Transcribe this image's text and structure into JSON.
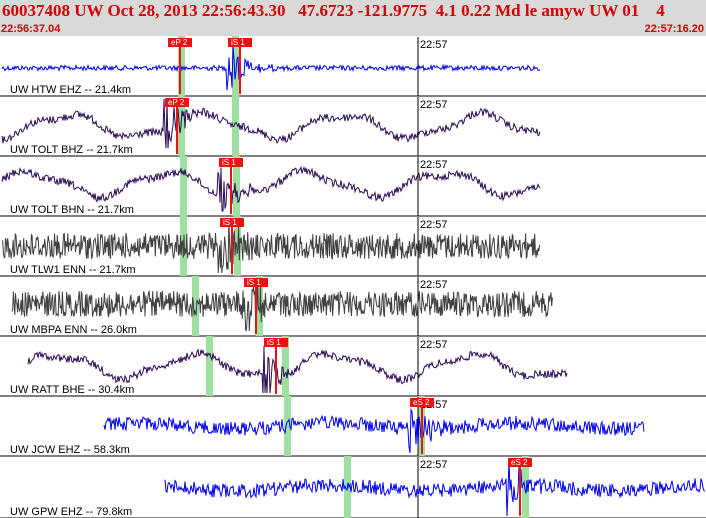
{
  "header": {
    "title": "60037408 UW Oct 28, 2013 22:56:43.30   47.6723 -121.9775  4.1 0.22 Md le amyw UW 01    4",
    "time_start": "22:56:37.04",
    "time_end": "22:57:16.20"
  },
  "minute_label": "22:57",
  "colors": {
    "background": "#ffffff",
    "header": "#d9d9d9",
    "title": "#d40000",
    "pick": "#ee1111",
    "theoretical_window": "#9fdf9f",
    "blue_trace": "#0000ee",
    "purple_trace": "#2a0a55",
    "gray_trace": "#404040"
  },
  "traces": [
    {
      "label": "UW HTW EHZ -- 21.4km",
      "color": "blue",
      "waveform": "small-noise-burst",
      "picks": [
        "eP 2",
        "iS 1"
      ]
    },
    {
      "label": "UW TOLT BHZ -- 21.7km",
      "color": "purple",
      "waveform": "microseism",
      "picks": [
        "eP 2"
      ]
    },
    {
      "label": "UW TOLT BHN -- 21.7km",
      "color": "purple",
      "waveform": "microseism",
      "picks": [
        "iS 1"
      ]
    },
    {
      "label": "UW TLW1 ENN -- 21.7km",
      "color": "gray",
      "waveform": "dense-noise",
      "picks": [
        "iS 1"
      ]
    },
    {
      "label": "UW MBPA ENN -- 26.0km",
      "color": "gray",
      "waveform": "dense-noise",
      "picks": [
        "iS 1"
      ]
    },
    {
      "label": "UW RATT BHE -- 30.4km",
      "color": "purple",
      "waveform": "microseism",
      "picks": [
        "iS 1"
      ]
    },
    {
      "label": "UW JCW EHZ -- 58.3km",
      "color": "blue",
      "waveform": "noise",
      "picks": [
        "eS 2"
      ]
    },
    {
      "label": "UW GPW EHZ -- 79.8km",
      "color": "blue",
      "waveform": "noise",
      "picks": [
        "eS 2"
      ]
    }
  ]
}
